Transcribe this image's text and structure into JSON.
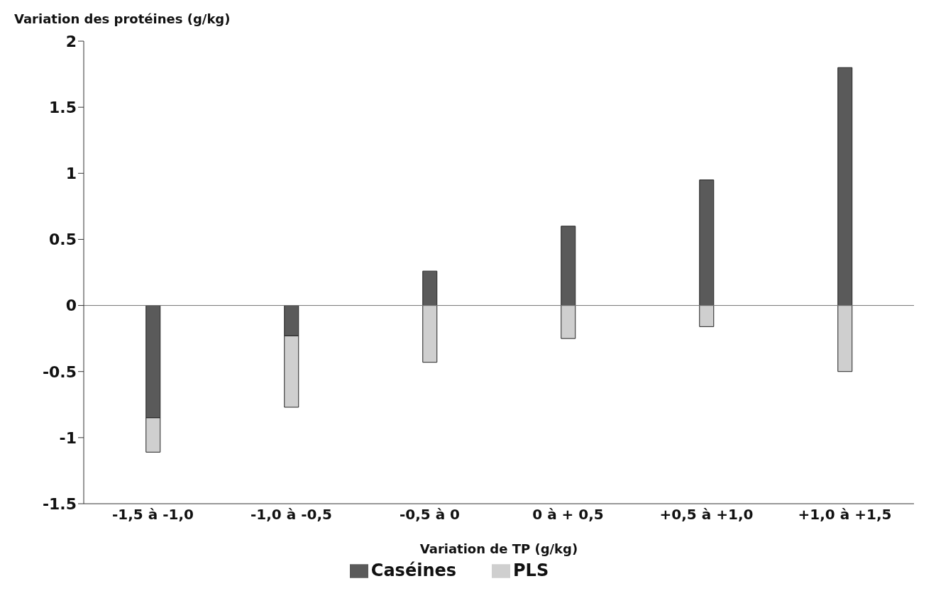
{
  "chart_data": {
    "type": "bar",
    "stacked": true,
    "ylabel": "Variation des protéines (g/kg)",
    "xlabel": "Variation de TP (g/kg)",
    "categories": [
      "-1,5 à -1,0",
      "-1,0 à -0,5",
      "-0,5 à 0",
      "0 à + 0,5",
      "+0,5 à +1,0",
      "+1,0 à +1,5"
    ],
    "series": [
      {
        "name": "Caséines",
        "color": "#5a5a5a",
        "values": [
          -0.85,
          -0.23,
          0.26,
          0.6,
          0.95,
          1.8
        ]
      },
      {
        "name": "PLS",
        "color": "#cfcfcf",
        "values": [
          -0.26,
          -0.54,
          -0.43,
          -0.25,
          -0.16,
          -0.5
        ]
      }
    ],
    "ylim": [
      -1.5,
      2
    ],
    "yticks": [
      -1.5,
      -1,
      -0.5,
      0,
      0.5,
      1,
      1.5,
      2
    ],
    "grid": false,
    "legend": "bottom",
    "ref_lines": [
      {
        "axis": "y",
        "value": 0
      }
    ]
  }
}
